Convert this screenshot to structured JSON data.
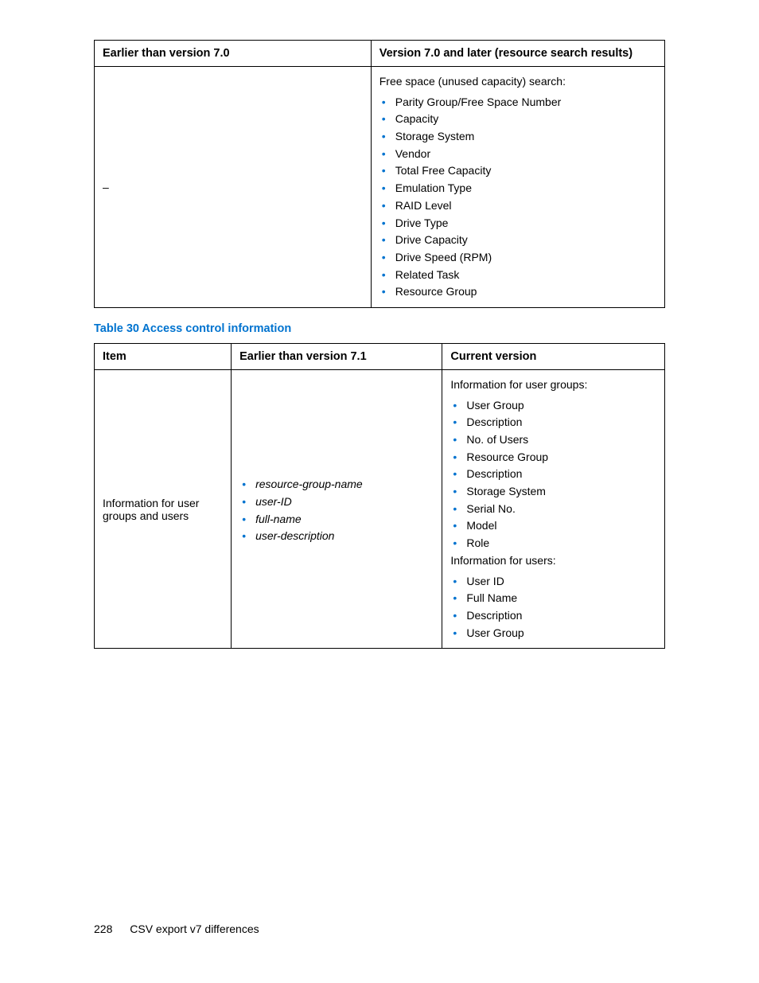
{
  "colors": {
    "accent": "#0073cf",
    "text": "#000000",
    "border": "#000000",
    "background": "#ffffff"
  },
  "table1": {
    "headers": [
      "Earlier than version 7.0",
      "Version 7.0 and later (resource search results)"
    ],
    "row": {
      "left": "–",
      "right_intro": "Free space (unused capacity) search:",
      "right_items": [
        "Parity Group/Free Space Number",
        "Capacity",
        "Storage System",
        "Vendor",
        "Total Free Capacity",
        "Emulation Type",
        "RAID Level",
        "Drive Type",
        "Drive Capacity",
        "Drive Speed (RPM)",
        "Related Task",
        "Resource Group"
      ]
    }
  },
  "table2_caption": "Table 30 Access control information",
  "table2": {
    "headers": [
      "Item",
      "Earlier than version 7.1",
      "Current version"
    ],
    "row": {
      "item": "Information for user groups and users",
      "earlier_items": [
        "resource-group-name",
        "user-ID",
        "full-name",
        "user-description"
      ],
      "current_intro1": "Information for user groups:",
      "current_items1": [
        "User Group",
        "Description",
        "No. of Users",
        "Resource Group",
        "Description",
        "Storage System",
        "Serial No.",
        "Model",
        "Role"
      ],
      "current_intro2": "Information for users:",
      "current_items2": [
        "User ID",
        "Full Name",
        "Description",
        "User Group"
      ]
    }
  },
  "footer": {
    "page_number": "228",
    "title": "CSV export v7 differences"
  }
}
